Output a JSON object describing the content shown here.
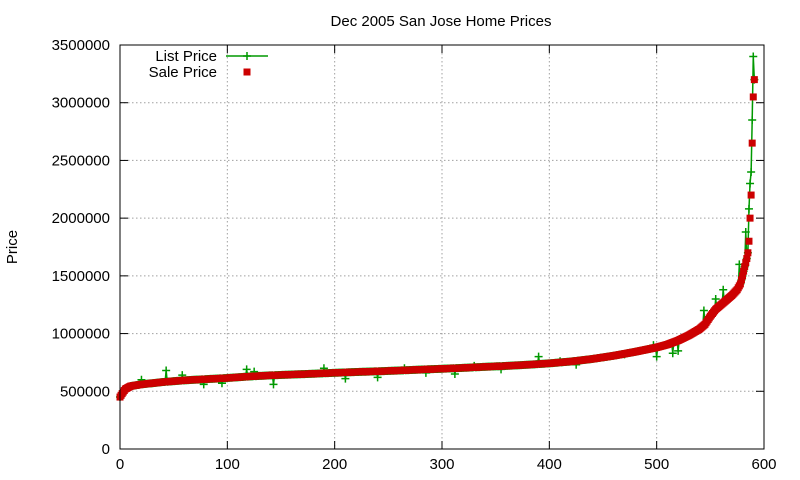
{
  "chart_data": {
    "type": "scatter",
    "title": "Dec 2005 San Jose Home Prices",
    "xlabel": "",
    "ylabel": "Price",
    "xlim": [
      0,
      600
    ],
    "ylim": [
      0,
      3500000
    ],
    "x_ticks": [
      0,
      100,
      200,
      300,
      400,
      500,
      600
    ],
    "y_ticks": [
      0,
      500000,
      1000000,
      1500000,
      2000000,
      2500000,
      3000000,
      3500000
    ],
    "grid": true,
    "legend_position": "top-left",
    "sorted_sale_curve": [
      [
        0,
        450000
      ],
      [
        2,
        480000
      ],
      [
        5,
        520000
      ],
      [
        10,
        545000
      ],
      [
        20,
        560000
      ],
      [
        40,
        580000
      ],
      [
        60,
        595000
      ],
      [
        80,
        605000
      ],
      [
        100,
        615000
      ],
      [
        120,
        628000
      ],
      [
        140,
        638000
      ],
      [
        160,
        645000
      ],
      [
        180,
        652000
      ],
      [
        200,
        660000
      ],
      [
        220,
        667000
      ],
      [
        240,
        673000
      ],
      [
        260,
        680000
      ],
      [
        280,
        688000
      ],
      [
        300,
        695000
      ],
      [
        320,
        703000
      ],
      [
        340,
        712000
      ],
      [
        360,
        720000
      ],
      [
        380,
        730000
      ],
      [
        400,
        742000
      ],
      [
        420,
        758000
      ],
      [
        440,
        780000
      ],
      [
        460,
        808000
      ],
      [
        480,
        842000
      ],
      [
        500,
        880000
      ],
      [
        510,
        905000
      ],
      [
        520,
        940000
      ],
      [
        530,
        985000
      ],
      [
        540,
        1040000
      ],
      [
        545,
        1080000
      ],
      [
        550,
        1150000
      ],
      [
        555,
        1210000
      ],
      [
        560,
        1250000
      ],
      [
        565,
        1290000
      ],
      [
        570,
        1330000
      ],
      [
        575,
        1380000
      ],
      [
        578,
        1430000
      ],
      [
        580,
        1500000
      ],
      [
        582,
        1580000
      ],
      [
        584,
        1650000
      ],
      [
        585,
        1700000
      ],
      [
        586,
        1800000
      ],
      [
        587,
        2000000
      ],
      [
        588,
        2200000
      ],
      [
        589,
        2650000
      ],
      [
        590,
        3050000
      ],
      [
        591,
        3200000
      ]
    ],
    "list_outliers": [
      [
        20,
        600000
      ],
      [
        43,
        680000
      ],
      [
        58,
        640000
      ],
      [
        78,
        560000
      ],
      [
        95,
        570000
      ],
      [
        118,
        690000
      ],
      [
        125,
        670000
      ],
      [
        143,
        560000
      ],
      [
        190,
        700000
      ],
      [
        210,
        610000
      ],
      [
        240,
        620000
      ],
      [
        265,
        700000
      ],
      [
        285,
        660000
      ],
      [
        312,
        650000
      ],
      [
        330,
        720000
      ],
      [
        355,
        690000
      ],
      [
        390,
        800000
      ],
      [
        410,
        760000
      ],
      [
        425,
        730000
      ],
      [
        470,
        820000
      ],
      [
        497,
        900000
      ],
      [
        500,
        800000
      ],
      [
        515,
        830000
      ],
      [
        520,
        850000
      ],
      [
        544,
        1200000
      ],
      [
        555,
        1300000
      ],
      [
        562,
        1380000
      ],
      [
        577,
        1600000
      ],
      [
        583,
        1880000
      ],
      [
        586,
        2080000
      ],
      [
        587,
        2300000
      ],
      [
        588,
        2400000
      ],
      [
        589,
        2850000
      ],
      [
        590,
        3400000
      ]
    ],
    "series": [
      {
        "name": "List Price",
        "color": "#009900",
        "marker": "plus",
        "line": true
      },
      {
        "name": "Sale Price",
        "color": "#cc0000",
        "marker": "square",
        "line": false
      }
    ]
  }
}
